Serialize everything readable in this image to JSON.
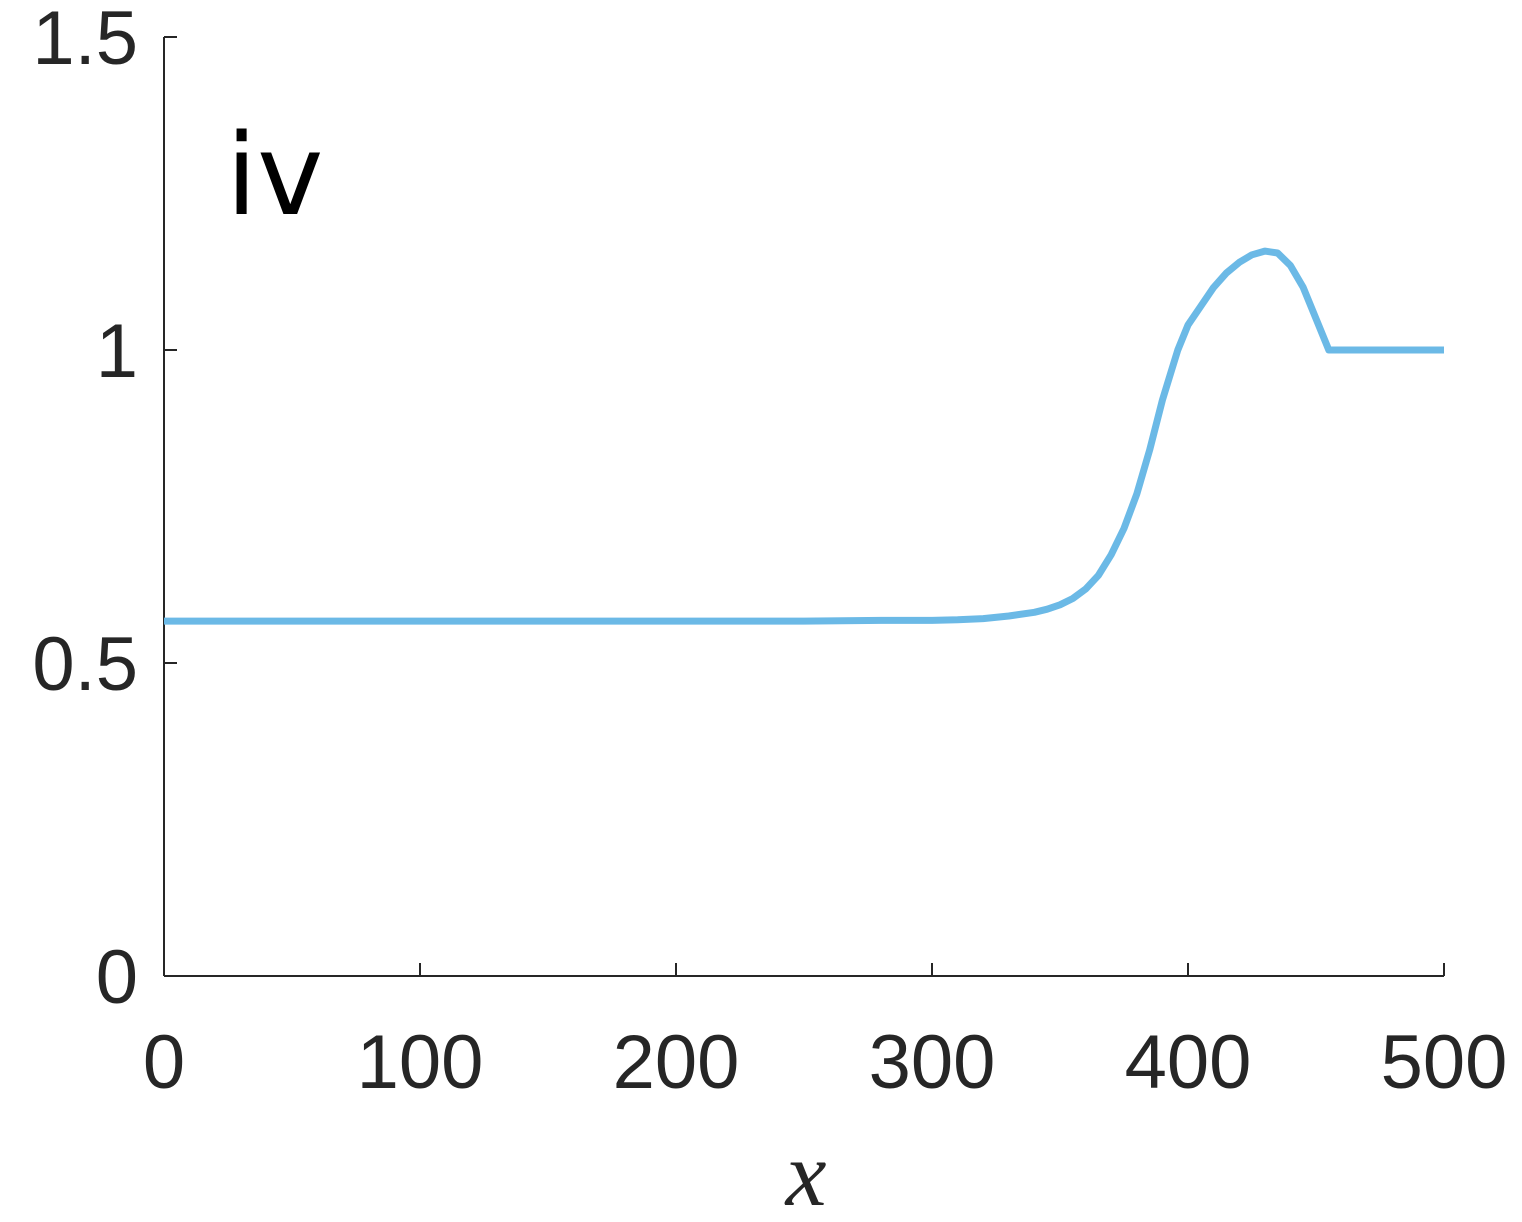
{
  "panel_label": "iv",
  "colors": {
    "series": "#6bb9e6",
    "axis": "#262626"
  },
  "chart_data": {
    "type": "line",
    "xlabel": "x",
    "ylabel": "",
    "xlim": [
      0,
      500
    ],
    "ylim": [
      0,
      1.5
    ],
    "xticks": [
      0,
      100,
      200,
      300,
      400,
      500
    ],
    "yticks": [
      0,
      0.5,
      1,
      1.5
    ],
    "xtick_labels": [
      "0",
      "100",
      "200",
      "300",
      "400",
      "500"
    ],
    "ytick_labels": [
      "0",
      "0.5",
      "1",
      "1.5"
    ],
    "grid": false,
    "series": [
      {
        "x": [
          0,
          50,
          100,
          150,
          200,
          250,
          280,
          300,
          310,
          320,
          330,
          340,
          345,
          350,
          355,
          360,
          365,
          370,
          375,
          380,
          385,
          390,
          393,
          396,
          400,
          405,
          410,
          415,
          420,
          425,
          430,
          435,
          440,
          445,
          450,
          455,
          460,
          470,
          480,
          490,
          500
        ],
        "y": [
          0.567,
          0.567,
          0.567,
          0.567,
          0.567,
          0.567,
          0.568,
          0.568,
          0.569,
          0.571,
          0.575,
          0.581,
          0.586,
          0.593,
          0.603,
          0.618,
          0.64,
          0.673,
          0.715,
          0.77,
          0.84,
          0.92,
          0.96,
          1.0,
          1.04,
          1.07,
          1.1,
          1.123,
          1.14,
          1.152,
          1.158,
          1.155,
          1.135,
          1.1,
          1.05,
          1.0,
          1.0,
          1.0,
          1.0,
          1.0,
          1.0
        ]
      }
    ]
  }
}
